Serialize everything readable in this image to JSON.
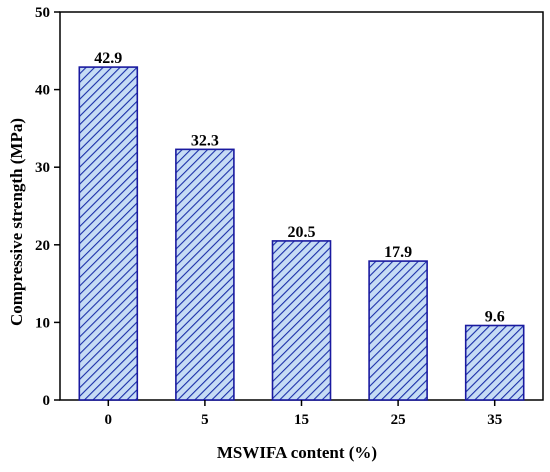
{
  "chart_data": {
    "type": "bar",
    "categories": [
      "0",
      "5",
      "15",
      "25",
      "35"
    ],
    "values": [
      42.9,
      32.3,
      20.5,
      17.9,
      9.6
    ],
    "data_labels": [
      "42.9",
      "32.3",
      "20.5",
      "17.9",
      "9.6"
    ],
    "xlabel": "MSWIFA content (%)",
    "ylabel": "Compressive strength (MPa)",
    "ylim": [
      0,
      50
    ],
    "yticks": [
      "0",
      "10",
      "20",
      "30",
      "40",
      "50"
    ],
    "grid": false,
    "bar_fill": "#c6dcf5",
    "bar_hatch": "#1a2fa8",
    "bar_edge": "#1a1aa0"
  }
}
